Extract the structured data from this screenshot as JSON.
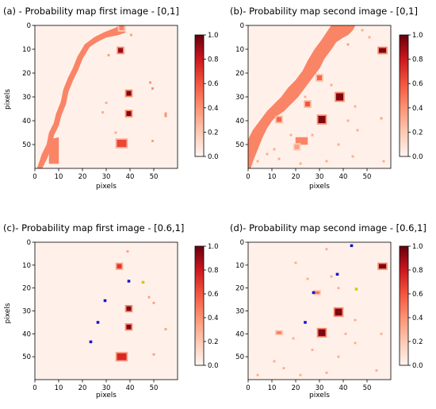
{
  "chart_data": [
    {
      "type": "heatmap",
      "title": "(a) - Probability map first image - [0,1]",
      "xlabel": "pixels",
      "ylabel": "pixels",
      "xlim": [
        0,
        60
      ],
      "ylim": [
        60,
        0
      ],
      "xticks": [
        0,
        10,
        20,
        30,
        40,
        50
      ],
      "yticks": [
        0,
        10,
        20,
        30,
        40,
        50
      ],
      "colorbar": {
        "range": [
          0,
          1
        ],
        "ticks": [
          "0.0",
          "0.2",
          "0.4",
          "0.6",
          "0.8",
          "1.0"
        ]
      },
      "cells": [
        {
          "x": 36.5,
          "y": 1.0,
          "v": 0.45,
          "w": 2,
          "h": 2
        },
        {
          "x": 36.0,
          "y": 10.5,
          "v": 0.9,
          "w": 2,
          "h": 2
        },
        {
          "x": 39.5,
          "y": 28.5,
          "v": 0.95,
          "w": 2,
          "h": 2
        },
        {
          "x": 39.5,
          "y": 37.0,
          "v": 0.95,
          "w": 2,
          "h": 2
        },
        {
          "x": 36.5,
          "y": 49.5,
          "v": 0.65,
          "w": 4,
          "h": 3
        },
        {
          "x": 31.0,
          "y": 12.5,
          "v": 0.35,
          "w": 1,
          "h": 1
        },
        {
          "x": 30.0,
          "y": 32.5,
          "v": 0.3,
          "w": 1,
          "h": 1
        },
        {
          "x": 28.5,
          "y": 36.5,
          "v": 0.3,
          "w": 1,
          "h": 1
        },
        {
          "x": 48.5,
          "y": 24.0,
          "v": 0.4,
          "w": 1,
          "h": 1
        },
        {
          "x": 49.5,
          "y": 26.5,
          "v": 0.4,
          "w": 1,
          "h": 1
        },
        {
          "x": 55.0,
          "y": 37.5,
          "v": 0.4,
          "w": 1,
          "h": 2
        },
        {
          "x": 34.0,
          "y": 45.0,
          "v": 0.3,
          "w": 1,
          "h": 1
        },
        {
          "x": 49.5,
          "y": 48.5,
          "v": 0.35,
          "w": 1,
          "h": 1
        },
        {
          "x": 40.5,
          "y": 4.0,
          "v": 0.35,
          "w": 1,
          "h": 1
        }
      ],
      "bands": [
        {
          "v": 0.45,
          "pts": [
            [
              1,
              60
            ],
            [
              3,
              54
            ],
            [
              5,
              50
            ],
            [
              6,
              45
            ],
            [
              8,
              41
            ],
            [
              9,
              37
            ],
            [
              11,
              32
            ],
            [
              12,
              27
            ],
            [
              14,
              22
            ],
            [
              16,
              18
            ],
            [
              18,
              13
            ],
            [
              21,
              8
            ],
            [
              25,
              5
            ],
            [
              29,
              3
            ],
            [
              34,
              1
            ],
            [
              36,
              0
            ],
            [
              38,
              0
            ],
            [
              38,
              3
            ],
            [
              35,
              4
            ],
            [
              30,
              5
            ],
            [
              26,
              7
            ],
            [
              23,
              9
            ],
            [
              20,
              14
            ],
            [
              18,
              19
            ],
            [
              16,
              23
            ],
            [
              14,
              28
            ],
            [
              13,
              33
            ],
            [
              11,
              38
            ],
            [
              10,
              42
            ],
            [
              8,
              46
            ],
            [
              7,
              51
            ],
            [
              5,
              56
            ],
            [
              3,
              60
            ]
          ]
        },
        {
          "v": 0.45,
          "pts": [
            [
              6,
              48
            ],
            [
              10,
              47
            ],
            [
              10,
              58
            ],
            [
              6,
              58
            ]
          ]
        }
      ]
    },
    {
      "type": "heatmap",
      "title": "(b)- Probability map second image - [0,1]",
      "xlabel": "pixels",
      "ylabel": "",
      "xlim": [
        0,
        60
      ],
      "ylim": [
        60,
        0
      ],
      "xticks": [
        0,
        10,
        20,
        30,
        40,
        50
      ],
      "yticks": [
        0,
        10,
        20,
        30,
        40,
        50
      ],
      "colorbar": {
        "range": [
          0,
          1
        ],
        "ticks": [
          "0.0",
          "0.2",
          "0.4",
          "0.6",
          "0.8",
          "1.0"
        ]
      },
      "cells": [
        {
          "x": 56.5,
          "y": 10.5,
          "v": 0.95,
          "w": 3,
          "h": 2
        },
        {
          "x": 38.5,
          "y": 30.0,
          "v": 0.95,
          "w": 3,
          "h": 3
        },
        {
          "x": 31.0,
          "y": 39.5,
          "v": 0.95,
          "w": 3,
          "h": 3
        },
        {
          "x": 30.0,
          "y": 22.0,
          "v": 0.55,
          "w": 2,
          "h": 2
        },
        {
          "x": 25.0,
          "y": 33.0,
          "v": 0.6,
          "w": 2,
          "h": 2
        },
        {
          "x": 13.0,
          "y": 39.5,
          "v": 0.55,
          "w": 2,
          "h": 2
        },
        {
          "x": 20.5,
          "y": 51.0,
          "v": 0.35,
          "w": 2,
          "h": 2
        },
        {
          "x": 42.0,
          "y": 8.0,
          "v": 0.35,
          "w": 1,
          "h": 1
        },
        {
          "x": 48.0,
          "y": 2.0,
          "v": 0.3,
          "w": 1,
          "h": 1
        },
        {
          "x": 51.0,
          "y": 5.0,
          "v": 0.3,
          "w": 1,
          "h": 1
        },
        {
          "x": 35.0,
          "y": 25.0,
          "v": 0.3,
          "w": 1,
          "h": 1
        },
        {
          "x": 45.0,
          "y": 34.0,
          "v": 0.3,
          "w": 1,
          "h": 1
        },
        {
          "x": 56.0,
          "y": 39.0,
          "v": 0.35,
          "w": 1,
          "h": 1
        },
        {
          "x": 42.0,
          "y": 40.0,
          "v": 0.3,
          "w": 1,
          "h": 1
        },
        {
          "x": 46.0,
          "y": 44.0,
          "v": 0.3,
          "w": 1,
          "h": 1
        },
        {
          "x": 18.0,
          "y": 46.0,
          "v": 0.3,
          "w": 1,
          "h": 1
        },
        {
          "x": 27.0,
          "y": 46.0,
          "v": 0.3,
          "w": 1,
          "h": 1
        },
        {
          "x": 38.0,
          "y": 50.0,
          "v": 0.3,
          "w": 1,
          "h": 1
        },
        {
          "x": 44.0,
          "y": 55.0,
          "v": 0.3,
          "w": 1,
          "h": 1
        },
        {
          "x": 11.0,
          "y": 52.0,
          "v": 0.3,
          "w": 1,
          "h": 1
        },
        {
          "x": 8.0,
          "y": 54.0,
          "v": 0.3,
          "w": 1,
          "h": 1
        },
        {
          "x": 13.0,
          "y": 56.0,
          "v": 0.3,
          "w": 1,
          "h": 1
        },
        {
          "x": 33.0,
          "y": 57.0,
          "v": 0.3,
          "w": 1,
          "h": 1
        },
        {
          "x": 57.0,
          "y": 57.0,
          "v": 0.3,
          "w": 1,
          "h": 1
        },
        {
          "x": 22.0,
          "y": 58.0,
          "v": 0.3,
          "w": 1,
          "h": 1
        },
        {
          "x": 4.0,
          "y": 57.0,
          "v": 0.3,
          "w": 1,
          "h": 1
        },
        {
          "x": 24.0,
          "y": 30.0,
          "v": 0.3,
          "w": 1,
          "h": 1
        }
      ],
      "bands": [
        {
          "v": 0.45,
          "pts": [
            [
              0,
              48
            ],
            [
              2,
              44
            ],
            [
              5,
              40
            ],
            [
              8,
              36
            ],
            [
              11,
              33
            ],
            [
              14,
              30
            ],
            [
              17,
              26
            ],
            [
              20,
              23
            ],
            [
              23,
              19
            ],
            [
              25,
              15
            ],
            [
              28,
              10
            ],
            [
              31,
              6
            ],
            [
              33,
              3
            ],
            [
              35,
              0
            ],
            [
              45,
              0
            ],
            [
              44,
              2
            ],
            [
              42,
              4
            ],
            [
              40,
              5
            ],
            [
              37,
              7
            ],
            [
              35,
              10
            ],
            [
              32,
              14
            ],
            [
              30,
              18
            ],
            [
              27,
              22
            ],
            [
              24,
              26
            ],
            [
              21,
              30
            ],
            [
              18,
              33
            ],
            [
              15,
              36
            ],
            [
              12,
              38
            ],
            [
              10,
              40
            ],
            [
              8,
              43
            ],
            [
              6,
              47
            ],
            [
              4,
              52
            ],
            [
              2,
              57
            ],
            [
              1,
              60
            ],
            [
              0,
              60
            ]
          ]
        },
        {
          "v": 0.45,
          "pts": [
            [
              20,
              47
            ],
            [
              25,
              47
            ],
            [
              25,
              50
            ],
            [
              20,
              50
            ]
          ]
        }
      ]
    },
    {
      "type": "heatmap",
      "title": "(c)- Probability map first image - [0.6,1]",
      "xlabel": "pixels",
      "ylabel": "pixels",
      "xlim": [
        0,
        60
      ],
      "ylim": [
        60,
        0
      ],
      "xticks": [
        0,
        10,
        20,
        30,
        40,
        50
      ],
      "yticks": [
        0,
        10,
        20,
        30,
        40,
        50
      ],
      "colorbar": {
        "range": [
          0,
          1
        ],
        "ticks": [
          "0.0",
          "0.2",
          "0.4",
          "0.6",
          "0.8",
          "1.0"
        ]
      },
      "cells": [
        {
          "x": 35.5,
          "y": 10.5,
          "v": 0.7,
          "w": 2,
          "h": 2
        },
        {
          "x": 39.5,
          "y": 29.0,
          "v": 0.95,
          "w": 2,
          "h": 2
        },
        {
          "x": 39.5,
          "y": 37.0,
          "v": 0.95,
          "w": 2,
          "h": 2
        },
        {
          "x": 36.5,
          "y": 50.0,
          "v": 0.75,
          "w": 4,
          "h": 3
        },
        {
          "x": 39.0,
          "y": 4.0,
          "v": 0.35,
          "w": 1,
          "h": 1
        },
        {
          "x": 48.0,
          "y": 24.0,
          "v": 0.35,
          "w": 1,
          "h": 1
        },
        {
          "x": 50.0,
          "y": 26.5,
          "v": 0.35,
          "w": 1,
          "h": 1
        },
        {
          "x": 55.0,
          "y": 38.0,
          "v": 0.35,
          "w": 1,
          "h": 1
        },
        {
          "x": 50.0,
          "y": 49.0,
          "v": 0.35,
          "w": 1,
          "h": 1
        }
      ],
      "markers": [
        {
          "x": 39.5,
          "y": 17.0,
          "color": "#1515c8"
        },
        {
          "x": 45.5,
          "y": 17.5,
          "color": "#d4c800"
        },
        {
          "x": 29.5,
          "y": 25.5,
          "color": "#1515c8"
        },
        {
          "x": 26.5,
          "y": 35.0,
          "color": "#1515c8"
        },
        {
          "x": 23.5,
          "y": 43.5,
          "color": "#1515c8"
        }
      ]
    },
    {
      "type": "heatmap",
      "title": "(d)- Probability map second image - [0.6,1]",
      "xlabel": "pixels",
      "ylabel": "",
      "xlim": [
        0,
        60
      ],
      "ylim": [
        60,
        0
      ],
      "xticks": [
        0,
        10,
        20,
        30,
        40,
        50
      ],
      "yticks": [
        0,
        10,
        20,
        30,
        40,
        50
      ],
      "colorbar": {
        "range": [
          0,
          1
        ],
        "ticks": [
          "0.0",
          "0.2",
          "0.4",
          "0.6",
          "0.8",
          "1.0"
        ]
      },
      "cells": [
        {
          "x": 56.5,
          "y": 10.5,
          "v": 0.95,
          "w": 3,
          "h": 2
        },
        {
          "x": 38.0,
          "y": 30.5,
          "v": 0.95,
          "w": 3,
          "h": 3
        },
        {
          "x": 31.0,
          "y": 39.5,
          "v": 0.95,
          "w": 3,
          "h": 3
        },
        {
          "x": 29.0,
          "y": 22.0,
          "v": 0.5,
          "w": 2,
          "h": 1
        },
        {
          "x": 13.0,
          "y": 39.5,
          "v": 0.5,
          "w": 2,
          "h": 1
        },
        {
          "x": 33.0,
          "y": 3.0,
          "v": 0.3,
          "w": 1,
          "h": 1
        },
        {
          "x": 20.0,
          "y": 9.0,
          "v": 0.3,
          "w": 1,
          "h": 1
        },
        {
          "x": 25.0,
          "y": 16.0,
          "v": 0.3,
          "w": 1,
          "h": 1
        },
        {
          "x": 35.0,
          "y": 15.0,
          "v": 0.3,
          "w": 1,
          "h": 1
        },
        {
          "x": 38.0,
          "y": 20.0,
          "v": 0.3,
          "w": 1,
          "h": 1
        },
        {
          "x": 45.0,
          "y": 34.0,
          "v": 0.3,
          "w": 1,
          "h": 1
        },
        {
          "x": 56.0,
          "y": 40.0,
          "v": 0.3,
          "w": 1,
          "h": 1
        },
        {
          "x": 41.0,
          "y": 40.0,
          "v": 0.3,
          "w": 1,
          "h": 1
        },
        {
          "x": 45.0,
          "y": 44.0,
          "v": 0.3,
          "w": 1,
          "h": 1
        },
        {
          "x": 19.0,
          "y": 42.0,
          "v": 0.3,
          "w": 1,
          "h": 1
        },
        {
          "x": 27.0,
          "y": 47.0,
          "v": 0.3,
          "w": 1,
          "h": 1
        },
        {
          "x": 38.0,
          "y": 50.0,
          "v": 0.3,
          "w": 1,
          "h": 1
        },
        {
          "x": 11.0,
          "y": 52.0,
          "v": 0.3,
          "w": 1,
          "h": 1
        },
        {
          "x": 33.0,
          "y": 57.0,
          "v": 0.3,
          "w": 1,
          "h": 1
        },
        {
          "x": 22.0,
          "y": 58.0,
          "v": 0.3,
          "w": 1,
          "h": 1
        },
        {
          "x": 4.0,
          "y": 58.0,
          "v": 0.3,
          "w": 1,
          "h": 1
        },
        {
          "x": 54.0,
          "y": 56.0,
          "v": 0.3,
          "w": 1,
          "h": 1
        },
        {
          "x": 15.0,
          "y": 55.0,
          "v": 0.3,
          "w": 1,
          "h": 1
        }
      ],
      "markers": [
        {
          "x": 43.5,
          "y": 1.5,
          "color": "#1515c8"
        },
        {
          "x": 37.5,
          "y": 14.0,
          "color": "#1515c8"
        },
        {
          "x": 45.5,
          "y": 20.5,
          "color": "#d4c800"
        },
        {
          "x": 27.5,
          "y": 22.0,
          "color": "#1515c8"
        },
        {
          "x": 24.0,
          "y": 35.0,
          "color": "#1515c8"
        }
      ]
    }
  ]
}
